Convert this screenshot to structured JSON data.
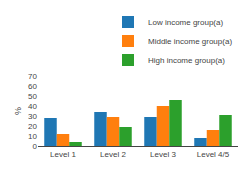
{
  "chart_data": {
    "type": "bar",
    "categories": [
      "Level 1",
      "Level 2",
      "Level 3",
      "Level 4/5"
    ],
    "series": [
      {
        "name": "Low income group(a)",
        "values": [
          28,
          34,
          29,
          8
        ]
      },
      {
        "name": "Middle income group(a)",
        "values": [
          12,
          29,
          40,
          16
        ]
      },
      {
        "name": "High income group(a)",
        "values": [
          4,
          19,
          46,
          31
        ]
      }
    ],
    "ylabel": "%",
    "ylim": [
      0,
      70
    ],
    "yticks": [
      0,
      10,
      20,
      30,
      40,
      50,
      60,
      70
    ],
    "grid": false,
    "legend": "top-right"
  }
}
